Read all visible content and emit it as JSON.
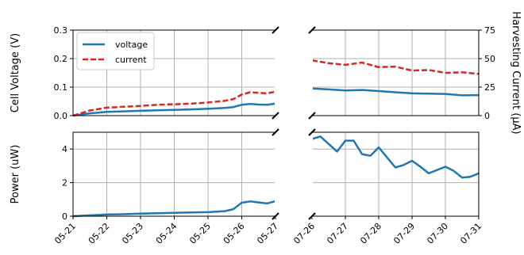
{
  "chart_data": {
    "type": "line",
    "left_dates": [
      "05-21",
      "05-22",
      "05-23",
      "05-24",
      "05-25",
      "05-26",
      "05-27"
    ],
    "right_dates": [
      "07-26",
      "07-27",
      "07-28",
      "07-29",
      "07-30",
      "07-31"
    ],
    "top_panel": {
      "ylabel_left": "Cell Voltage (V)",
      "ylabel_right": "Harvesting Current (µA)",
      "ylim_left": [
        0,
        0.3
      ],
      "ylim_right": [
        0,
        75
      ],
      "yticks_left": [
        "0.0",
        "0.1",
        "0.2",
        "0.3"
      ],
      "yticks_right": [
        "0",
        "25",
        "50",
        "75"
      ],
      "left_axis_color": "#1f77b4",
      "right_axis_color": "#d62728",
      "legend": {
        "location": "upper-left",
        "entries": [
          "voltage",
          "current"
        ]
      },
      "series": [
        {
          "name": "voltage",
          "color": "#1f77b4",
          "style": "solid",
          "axis": "left",
          "segment1": {
            "x": [
              "05-21 00h",
              "05-21 12h",
              "05-22 00h",
              "05-22 12h",
              "05-23 00h",
              "05-23 12h",
              "05-24 00h",
              "05-24 12h",
              "05-25 00h",
              "05-25 12h",
              "05-25 18h",
              "05-26 00h",
              "05-26 06h",
              "05-26 12h",
              "05-26 18h",
              "05-27 00h"
            ],
            "y": [
              0.0,
              0.008,
              0.013,
              0.015,
              0.017,
              0.019,
              0.02,
              0.022,
              0.024,
              0.027,
              0.03,
              0.038,
              0.041,
              0.039,
              0.038,
              0.042
            ]
          },
          "segment2": {
            "x": [
              "07-26 00h",
              "07-26 12h",
              "07-27 00h",
              "07-27 12h",
              "07-28 00h",
              "07-28 12h",
              "07-29 00h",
              "07-29 12h",
              "07-30 00h",
              "07-30 12h",
              "07-31 00h"
            ],
            "y": [
              0.095,
              0.092,
              0.088,
              0.09,
              0.086,
              0.082,
              0.078,
              0.077,
              0.076,
              0.071,
              0.072
            ]
          }
        },
        {
          "name": "current",
          "color": "#d62728",
          "style": "dashed",
          "axis": "right",
          "segment1": {
            "x": [
              "05-21 00h",
              "05-21 12h",
              "05-22 00h",
              "05-22 12h",
              "05-23 00h",
              "05-23 12h",
              "05-24 00h",
              "05-24 12h",
              "05-25 00h",
              "05-25 12h",
              "05-25 18h",
              "05-26 00h",
              "05-26 06h",
              "05-26 12h",
              "05-26 18h",
              "05-27 00h"
            ],
            "y": [
              0.0,
              4.5,
              7.0,
              7.8,
              8.5,
              9.5,
              10.0,
              10.5,
              11.5,
              13.0,
              14.5,
              18.5,
              20.5,
              20.0,
              19.5,
              21.0
            ]
          },
          "segment2": {
            "x": [
              "07-26 00h",
              "07-26 12h",
              "07-27 00h",
              "07-27 12h",
              "07-28 00h",
              "07-28 12h",
              "07-29 00h",
              "07-29 12h",
              "07-30 00h",
              "07-30 12h",
              "07-31 00h"
            ],
            "y": [
              48.5,
              46.0,
              44.5,
              46.5,
              42.5,
              43.0,
              39.5,
              40.0,
              37.5,
              38.0,
              36.5
            ]
          }
        }
      ]
    },
    "bottom_panel": {
      "ylabel": "Power (uW)",
      "ylim": [
        0,
        5
      ],
      "yticks": [
        "0",
        "2",
        "4"
      ],
      "series": [
        {
          "name": "power",
          "color": "#1f77b4",
          "style": "solid",
          "segment1": {
            "x": [
              "05-21 00h",
              "05-21 12h",
              "05-22 00h",
              "05-22 12h",
              "05-23 00h",
              "05-23 12h",
              "05-24 00h",
              "05-24 12h",
              "05-25 00h",
              "05-25 12h",
              "05-25 18h",
              "05-26 00h",
              "05-26 06h",
              "05-26 12h",
              "05-26 18h",
              "05-27 00h"
            ],
            "y": [
              0.0,
              0.05,
              0.1,
              0.12,
              0.15,
              0.18,
              0.2,
              0.22,
              0.24,
              0.3,
              0.42,
              0.8,
              0.88,
              0.82,
              0.76,
              0.9
            ]
          },
          "segment2": {
            "x": [
              "07-26 00h",
              "07-26 06h",
              "07-26 12h",
              "07-26 18h",
              "07-27 00h",
              "07-27 06h",
              "07-27 12h",
              "07-27 18h",
              "07-28 00h",
              "07-28 06h",
              "07-28 12h",
              "07-28 18h",
              "07-29 00h",
              "07-29 06h",
              "07-29 12h",
              "07-29 18h",
              "07-30 00h",
              "07-30 06h",
              "07-30 12h",
              "07-30 18h",
              "07-31 00h"
            ],
            "y": [
              4.6,
              4.75,
              4.3,
              3.85,
              4.5,
              4.5,
              3.7,
              3.6,
              4.1,
              3.5,
              2.9,
              3.05,
              3.3,
              2.95,
              2.55,
              2.75,
              2.95,
              2.7,
              2.3,
              2.35,
              2.55
            ]
          }
        }
      ]
    },
    "grid": true,
    "axis_break": true
  }
}
